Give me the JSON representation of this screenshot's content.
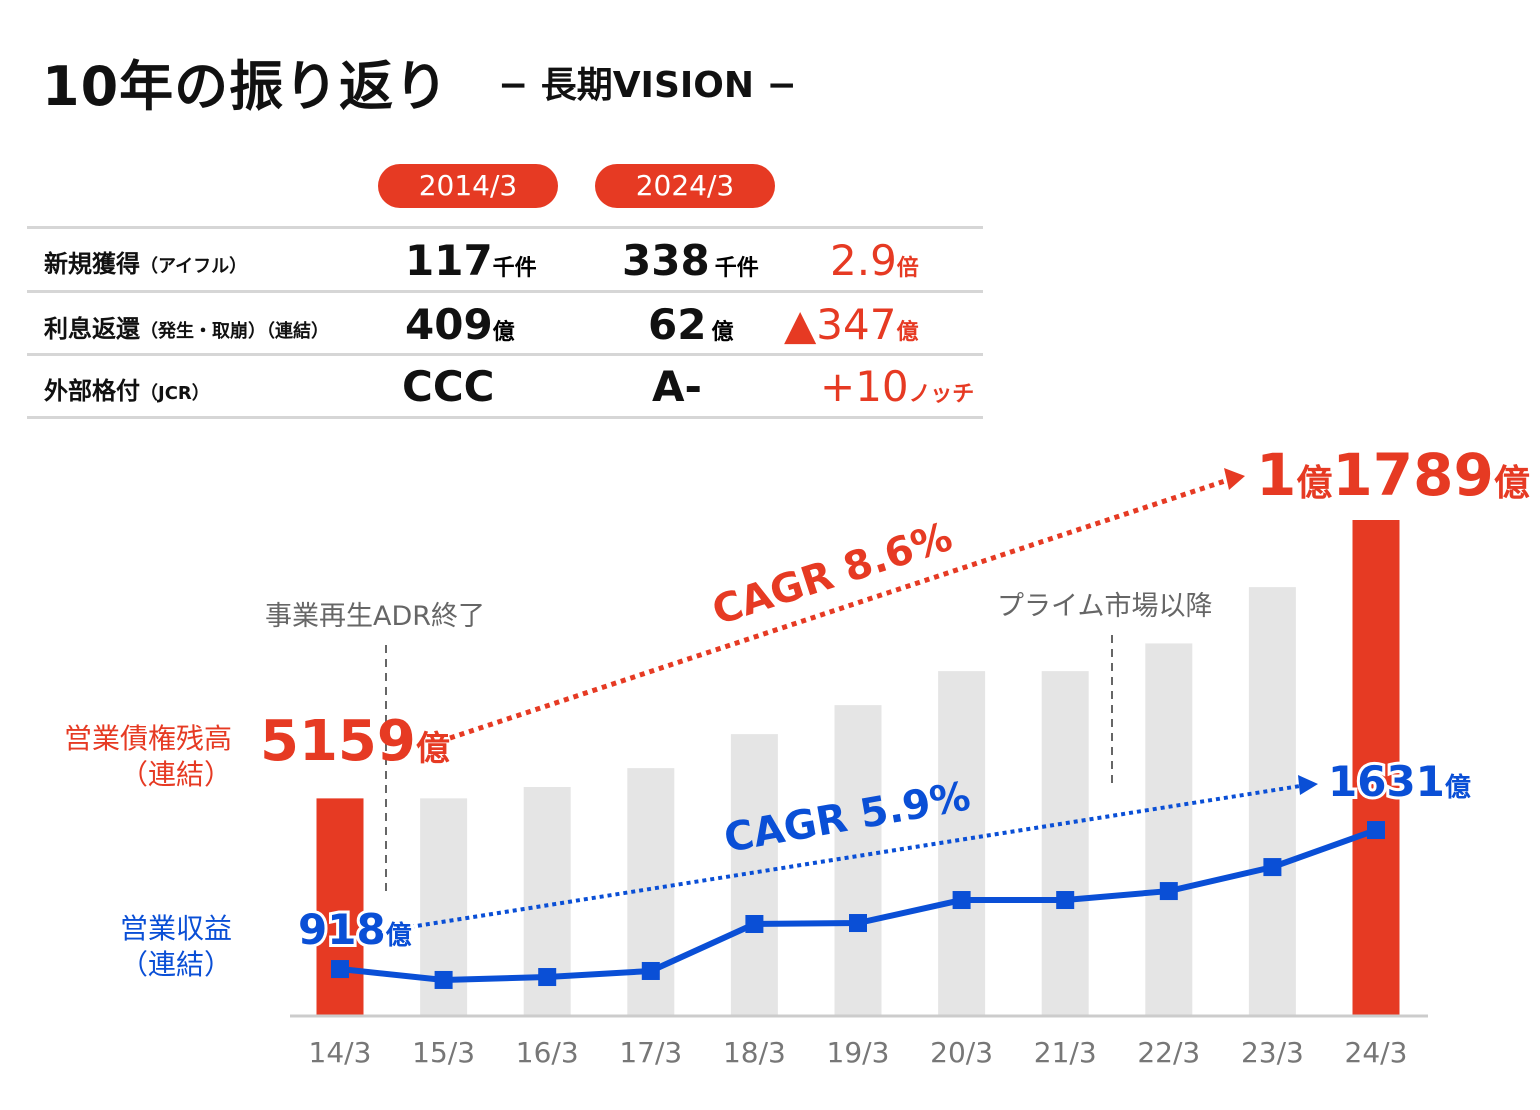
{
  "header": {
    "title": "10年の振り返り",
    "subtitle": "− 長期VISION −"
  },
  "table": {
    "columns": [
      "2014/3",
      "2024/3"
    ],
    "rows": [
      {
        "label": "新規獲得",
        "note": "（アイフル）",
        "v2014": "117",
        "u2014": "千件",
        "v2024": "338",
        "u2024": "千件",
        "diff": "2.9",
        "diff_unit": "倍"
      },
      {
        "label": "利息返還",
        "note": "（発生・取崩）（連結）",
        "v2014": "409",
        "u2014": "億",
        "v2024": "62",
        "u2024": "億",
        "diff": "▲347",
        "diff_unit": "億"
      },
      {
        "label": "外部格付",
        "note": "（JCR）",
        "v2014": "CCC",
        "u2014": "",
        "v2024": "A-",
        "u2024": "",
        "diff": "+10",
        "diff_unit": "ノッチ"
      }
    ]
  },
  "colors": {
    "red": "#e63a23",
    "blue": "#0a4fd6",
    "bar_gray": "#e5e5e5"
  },
  "chart_data": {
    "type": "bar+line",
    "categories": [
      "14/3",
      "15/3",
      "16/3",
      "17/3",
      "18/3",
      "19/3",
      "20/3",
      "21/3",
      "22/3",
      "23/3",
      "24/3"
    ],
    "series": [
      {
        "name": "営業債権残高（連結）",
        "type": "bar",
        "unit": "億",
        "values": [
          5159,
          5160,
          5430,
          5880,
          6690,
          7380,
          8190,
          8190,
          8850,
          10190,
          11789
        ]
      },
      {
        "name": "営業収益（連結）",
        "type": "line",
        "unit": "億",
        "values": [
          918,
          862,
          877,
          908,
          1149,
          1154,
          1272,
          1272,
          1318,
          1441,
          1631
        ]
      }
    ],
    "labels": {
      "bar_name_1": "営業債権残高",
      "bar_name_2": "（連結）",
      "line_name_1": "営業収益",
      "line_name_2": "（連結）",
      "bar_start": "5159",
      "bar_end_a": "1",
      "bar_end_b": "1789",
      "unit": "億",
      "line_start": "918",
      "line_end": "1631",
      "cagr_bar": "CAGR 8.6%",
      "cagr_line": "CAGR 5.9%",
      "ann1": "事業再生ADR終了",
      "ann2": "プライム市場以降"
    }
  }
}
